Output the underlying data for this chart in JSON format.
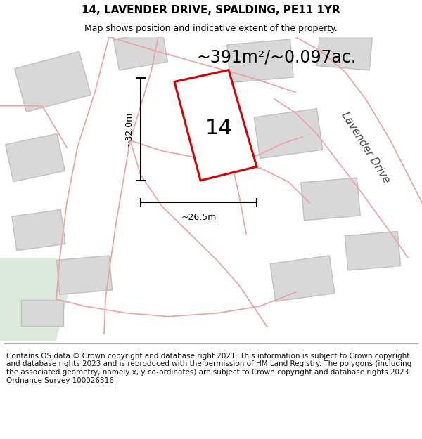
{
  "title": "14, LAVENDER DRIVE, SPALDING, PE11 1YR",
  "subtitle": "Map shows position and indicative extent of the property.",
  "area_text": "~391m²/~0.097ac.",
  "dim_width": "~26.5m",
  "dim_height": "~32.0m",
  "property_label": "14",
  "road_label": "Lavender Drive",
  "footer": "Contains OS data © Crown copyright and database right 2021. This information is subject to Crown copyright and database rights 2023 and is reproduced with the permission of HM Land Registry. The polygons (including the associated geometry, namely x, y co-ordinates) are subject to Crown copyright and database rights 2023 Ordnance Survey 100026316.",
  "bg_color": "#ffffff",
  "map_bg": "#f7f7f7",
  "building_fill": "#d8d8d8",
  "building_edge": "#c0c0c0",
  "plot_fill": "#ffffff",
  "plot_edge": "#dd0000",
  "road_line_color": "#f0a0a0",
  "title_fontsize": 11,
  "subtitle_fontsize": 9,
  "area_fontsize": 17,
  "label_fontsize": 22,
  "footer_fontsize": 7.5,
  "green_area": "#dde8dd"
}
